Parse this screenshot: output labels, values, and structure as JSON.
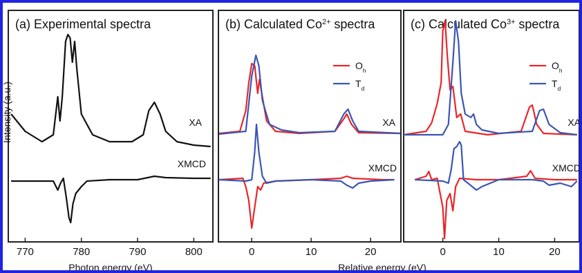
{
  "chart_data": [
    {
      "type": "line",
      "title": [
        "(a) Experimental spectra"
      ],
      "xlabel": "Photon energy (eV)",
      "ylabel": "Intensity (a.u.)",
      "xlim": [
        767,
        803.4
      ],
      "xticks": [
        770,
        780,
        790,
        800
      ],
      "ylim": [
        -88,
        247
      ],
      "annotations": [
        "XA",
        "XMCD"
      ],
      "series": [
        {
          "color": "#111111",
          "x": [
            767.5,
            770,
            773,
            775,
            775.8,
            776.2,
            776.6,
            777.2,
            777.6,
            778,
            778.4,
            778.8,
            779.2,
            780,
            781,
            782,
            785,
            789,
            791,
            792,
            793,
            794,
            795,
            797,
            800,
            803
          ],
          "values": [
            97,
            72,
            57,
            67,
            122,
            87,
            122,
            202,
            212,
            207,
            172,
            202,
            162,
            97,
            82,
            67,
            57,
            57,
            67,
            102,
            114,
            97,
            72,
            57,
            52,
            50
          ]
        }
      ],
      "xmcd_series": [
        {
          "color": "#111111",
          "x": [
            767.5,
            775,
            775.8,
            776.3,
            776.8,
            777.3,
            777.8,
            778.1,
            778.5,
            779,
            780,
            781,
            785,
            790,
            793,
            795,
            800,
            803
          ],
          "values": [
            0,
            0,
            -13,
            -3,
            4,
            -23,
            -53,
            -60,
            -33,
            -18,
            -8,
            0,
            2,
            2,
            7,
            5,
            4,
            4
          ]
        }
      ]
    },
    {
      "type": "line",
      "title": [
        "(b) Calculated Co",
        "2+",
        " spectra"
      ],
      "xlabel": "Relative energy (eV)",
      "xlim": [
        -5.6,
        25.1
      ],
      "xticks": [
        0,
        10,
        20
      ],
      "ylim": [
        -88,
        247
      ],
      "annotations": [
        "XA",
        "XMCD"
      ],
      "series": [
        {
          "name": [
            "O",
            "h"
          ],
          "color": "#e8262a",
          "x": [
            -5.5,
            -2,
            -1,
            -0.5,
            0,
            0.5,
            1,
            1.3,
            1.8,
            2.5,
            4,
            8,
            14,
            15.5,
            16,
            16.8,
            18,
            25
          ],
          "values": [
            69,
            72,
            102,
            142,
            170,
            167,
            127,
            147,
            122,
            87,
            72,
            69,
            72,
            90,
            97,
            82,
            70,
            69
          ]
        },
        {
          "name": [
            "T",
            "d"
          ],
          "color": "#3a55b4",
          "x": [
            -5.5,
            -1,
            0,
            0.7,
            1.2,
            1.8,
            2.3,
            3,
            5,
            8,
            14,
            15.5,
            16.2,
            17,
            18,
            25
          ],
          "values": [
            68,
            72,
            152,
            182,
            167,
            117,
            102,
            82,
            74,
            70,
            72,
            97,
            104,
            87,
            72,
            69
          ]
        }
      ],
      "xmcd_series": [
        {
          "color": "#e8262a",
          "x": [
            -5.5,
            -1.5,
            -1,
            -0.5,
            0,
            0.5,
            1,
            1.5,
            2,
            4,
            10,
            15,
            16,
            17,
            22,
            24
          ],
          "values": [
            2,
            4,
            -8,
            -28,
            -68,
            -38,
            -8,
            -13,
            -3,
            0,
            2,
            4,
            7,
            4,
            2,
            2
          ]
        },
        {
          "color": "#3a55b4",
          "x": [
            -5.5,
            -1,
            0,
            0.5,
            0.8,
            1.2,
            1.8,
            2.5,
            4,
            10,
            15,
            16,
            17,
            18,
            20,
            24
          ],
          "values": [
            2,
            0,
            2,
            42,
            82,
            42,
            7,
            -3,
            0,
            2,
            0,
            -6,
            -10,
            -3,
            0,
            2
          ]
        }
      ]
    },
    {
      "type": "line",
      "title": [
        "(c) Calculated Co",
        "3+",
        " spectra"
      ],
      "xlim": [
        -7,
        24.4
      ],
      "xticks": [
        0,
        10,
        20
      ],
      "ylim": [
        -88,
        247
      ],
      "annotations": [
        "XA",
        "XMCD"
      ],
      "series": [
        {
          "name": [
            "O",
            "h"
          ],
          "color": "#e8262a",
          "x": [
            -7,
            -3,
            -2,
            -1,
            -0.3,
            0,
            0.4,
            0.8,
            1.3,
            1.8,
            2.5,
            3.2,
            4,
            8,
            14,
            15.5,
            16,
            16.8,
            18,
            24
          ],
          "values": [
            67,
            72,
            84,
            112,
            142,
            217,
            232,
            182,
            132,
            137,
            92,
            97,
            72,
            67,
            72,
            107,
            110,
            82,
            69,
            67
          ]
        },
        {
          "name": [
            "T",
            "d"
          ],
          "color": "#3a55b4",
          "x": [
            -7,
            0,
            1,
            1.8,
            2.3,
            2.8,
            3.3,
            4,
            5,
            5.5,
            6,
            7,
            10,
            16,
            17.3,
            18,
            19,
            21,
            24
          ],
          "values": [
            67,
            67,
            82,
            172,
            232,
            202,
            127,
            97,
            92,
            97,
            82,
            74,
            69,
            72,
            102,
            104,
            82,
            70,
            67
          ]
        }
      ],
      "xmcd_series": [
        {
          "color": "#e8262a",
          "x": [
            -5,
            -3,
            -2.5,
            -2,
            -1,
            0,
            0.3,
            0.7,
            1.3,
            1.8,
            2.3,
            3,
            6,
            10,
            15,
            15.7,
            16.5,
            20,
            24
          ],
          "values": [
            2,
            7,
            14,
            2,
            4,
            -38,
            -83,
            -28,
            -18,
            -43,
            -8,
            4,
            2,
            2,
            7,
            15,
            4,
            2,
            2
          ]
        },
        {
          "color": "#3a55b4",
          "x": [
            -5,
            0,
            1,
            1.5,
            2,
            2.5,
            3,
            3.3,
            3.7,
            4.5,
            6,
            7,
            10,
            16,
            18,
            19,
            21,
            23,
            24
          ],
          "values": [
            2,
            0,
            -3,
            17,
            47,
            50,
            57,
            52,
            2,
            -3,
            -13,
            -8,
            2,
            2,
            0,
            -6,
            -3,
            -8,
            0
          ]
        }
      ]
    }
  ]
}
